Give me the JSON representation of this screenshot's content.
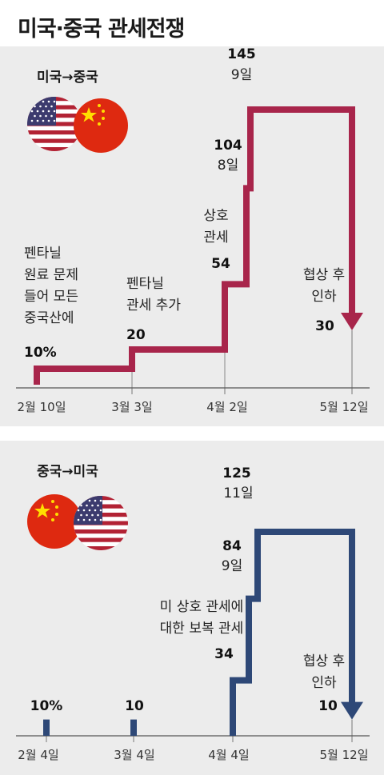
{
  "title": "미국·중국 관세전쟁",
  "colors": {
    "us_line": "#a8254b",
    "cn_line": "#2e4877",
    "background": "#ececec",
    "axis": "#555555"
  },
  "chart_data": [
    {
      "type": "line",
      "subtitle": "미국→중국",
      "flags": [
        "us-flag",
        "china-flag"
      ],
      "color": "#a8254b",
      "x": [
        "2월 10일",
        "3월 3일",
        "4월 2일",
        "4월 8일",
        "4월 9일",
        "5월 12일"
      ],
      "y": [
        10,
        20,
        54,
        104,
        145,
        30
      ],
      "xlabel": "",
      "ylabel": "",
      "tick_labels": [
        "2월 10일",
        "3월 3일",
        "4월 2일",
        "5월 12일"
      ],
      "annotations": [
        {
          "id": "a1",
          "lines": [
            "펜타닐",
            "원료 문제",
            "들어 모든",
            "중국산에"
          ],
          "value": "10%"
        },
        {
          "id": "a2",
          "lines": [
            "펜타닐",
            "관세 추가"
          ],
          "value": "20"
        },
        {
          "id": "a3",
          "lines": [
            "상호",
            "관세"
          ],
          "value": "54"
        },
        {
          "id": "a4",
          "lines": [],
          "value": "104",
          "date": "8일"
        },
        {
          "id": "a5",
          "lines": [],
          "value": "145",
          "date": "9일"
        },
        {
          "id": "a6",
          "lines": [
            "협상 후",
            "인하"
          ],
          "value": "30"
        }
      ]
    },
    {
      "type": "line",
      "subtitle": "중국→미국",
      "flags": [
        "china-flag",
        "us-flag"
      ],
      "color": "#2e4877",
      "x": [
        "2월 4일",
        "3월 4일",
        "4월 4일",
        "4월 9일",
        "4월 11일",
        "5월 12일"
      ],
      "y": [
        10,
        10,
        34,
        84,
        125,
        10
      ],
      "xlabel": "",
      "ylabel": "",
      "tick_labels": [
        "2월 4일",
        "3월 4일",
        "4월 4일",
        "5월 12일"
      ],
      "annotations": [
        {
          "id": "b1",
          "lines": [],
          "value": "10%"
        },
        {
          "id": "b2",
          "lines": [],
          "value": "10"
        },
        {
          "id": "b3",
          "lines": [
            "미 상호 관세에",
            "대한 보복 관세"
          ],
          "value": "34"
        },
        {
          "id": "b4",
          "lines": [],
          "value": "84",
          "date": "9일"
        },
        {
          "id": "b5",
          "lines": [],
          "value": "125",
          "date": "11일"
        },
        {
          "id": "b6",
          "lines": [
            "협상 후",
            "인하"
          ],
          "value": "10"
        }
      ]
    }
  ]
}
